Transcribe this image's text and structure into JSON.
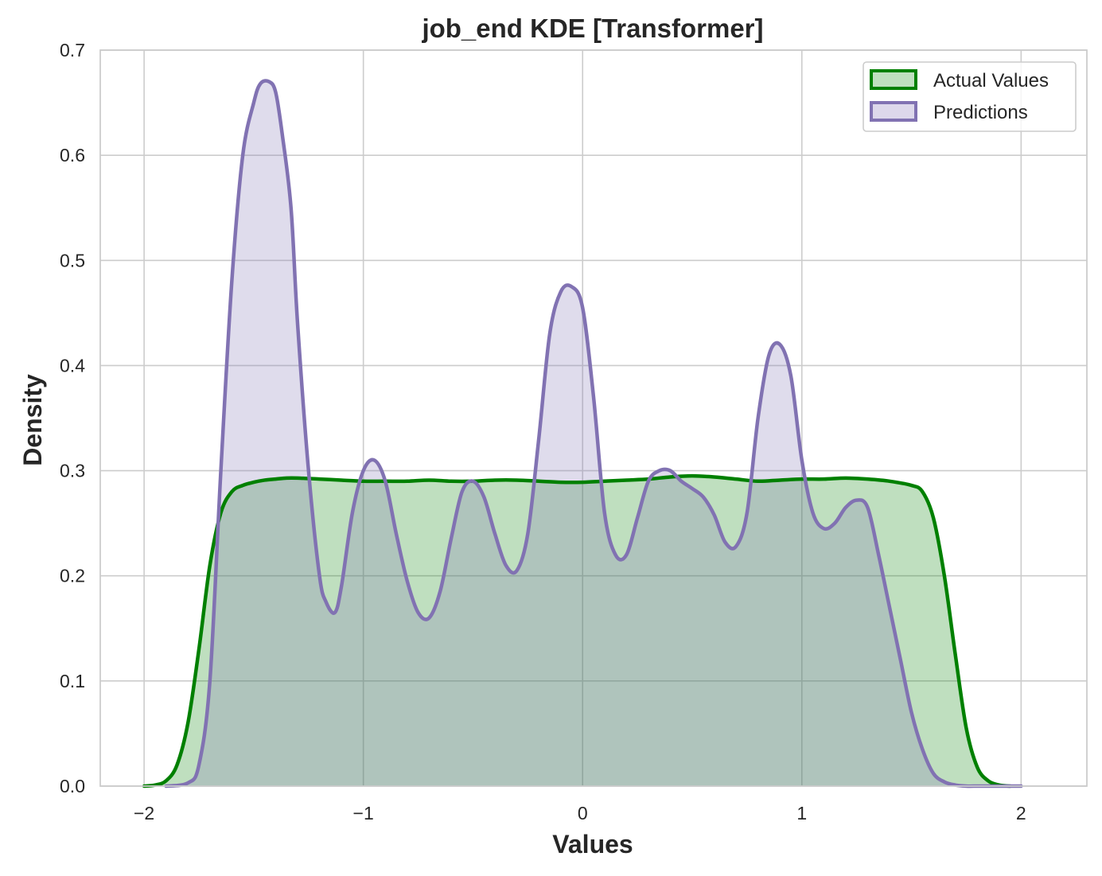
{
  "chart_data": {
    "type": "area",
    "title": "job_end KDE [Transformer]",
    "xlabel": "Values",
    "ylabel": "Density",
    "xlim": [
      -2.2,
      2.3
    ],
    "ylim": [
      0.0,
      0.7
    ],
    "xticks": [
      {
        "value": -2,
        "label": "−2"
      },
      {
        "value": -1,
        "label": "−1"
      },
      {
        "value": 0,
        "label": "0"
      },
      {
        "value": 1,
        "label": "1"
      },
      {
        "value": 2,
        "label": "2"
      }
    ],
    "yticks": [
      {
        "value": 0.0,
        "label": "0.0"
      },
      {
        "value": 0.1,
        "label": "0.1"
      },
      {
        "value": 0.2,
        "label": "0.2"
      },
      {
        "value": 0.3,
        "label": "0.3"
      },
      {
        "value": 0.4,
        "label": "0.4"
      },
      {
        "value": 0.5,
        "label": "0.5"
      },
      {
        "value": 0.6,
        "label": "0.6"
      },
      {
        "value": 0.7,
        "label": "0.7"
      }
    ],
    "grid": true,
    "legend_position": "top-right",
    "series": [
      {
        "name": "Actual Values",
        "color": "#008000",
        "fill": "#bfe0bf",
        "x": [
          -2.0,
          -1.95,
          -1.9,
          -1.85,
          -1.8,
          -1.75,
          -1.7,
          -1.65,
          -1.6,
          -1.55,
          -1.5,
          -1.45,
          -1.4,
          -1.35,
          -1.3,
          -1.2,
          -1.1,
          -1.0,
          -0.9,
          -0.8,
          -0.7,
          -0.6,
          -0.5,
          -0.4,
          -0.3,
          -0.2,
          -0.1,
          0.0,
          0.1,
          0.2,
          0.3,
          0.4,
          0.5,
          0.6,
          0.7,
          0.8,
          0.9,
          1.0,
          1.1,
          1.2,
          1.3,
          1.4,
          1.5,
          1.55,
          1.6,
          1.65,
          1.7,
          1.75,
          1.8,
          1.85,
          1.9,
          1.95
        ],
        "y": [
          0.0,
          0.001,
          0.005,
          0.02,
          0.06,
          0.13,
          0.21,
          0.26,
          0.28,
          0.286,
          0.289,
          0.291,
          0.292,
          0.293,
          0.293,
          0.292,
          0.291,
          0.29,
          0.29,
          0.29,
          0.291,
          0.29,
          0.29,
          0.291,
          0.291,
          0.29,
          0.289,
          0.289,
          0.29,
          0.291,
          0.292,
          0.294,
          0.295,
          0.294,
          0.292,
          0.29,
          0.291,
          0.292,
          0.292,
          0.293,
          0.292,
          0.29,
          0.286,
          0.28,
          0.255,
          0.2,
          0.125,
          0.055,
          0.018,
          0.005,
          0.001,
          0.0
        ]
      },
      {
        "name": "Predictions",
        "color": "#8172b2",
        "fill": "#ddd8eb",
        "x": [
          -1.9,
          -1.8,
          -1.75,
          -1.7,
          -1.65,
          -1.6,
          -1.55,
          -1.5,
          -1.47,
          -1.43,
          -1.4,
          -1.37,
          -1.33,
          -1.3,
          -1.25,
          -1.2,
          -1.17,
          -1.13,
          -1.1,
          -1.05,
          -1.0,
          -0.95,
          -0.9,
          -0.85,
          -0.8,
          -0.75,
          -0.7,
          -0.65,
          -0.6,
          -0.55,
          -0.5,
          -0.45,
          -0.4,
          -0.35,
          -0.3,
          -0.25,
          -0.2,
          -0.15,
          -0.1,
          -0.05,
          0.0,
          0.05,
          0.1,
          0.15,
          0.2,
          0.25,
          0.3,
          0.35,
          0.4,
          0.45,
          0.5,
          0.55,
          0.6,
          0.65,
          0.7,
          0.75,
          0.8,
          0.85,
          0.9,
          0.95,
          1.0,
          1.05,
          1.1,
          1.15,
          1.2,
          1.25,
          1.3,
          1.35,
          1.4,
          1.45,
          1.5,
          1.55,
          1.6,
          1.65,
          1.7,
          1.75,
          1.8,
          1.85,
          1.9,
          1.95,
          2.0
        ],
        "y": [
          0.0,
          0.003,
          0.02,
          0.1,
          0.3,
          0.48,
          0.6,
          0.65,
          0.668,
          0.67,
          0.66,
          0.62,
          0.55,
          0.44,
          0.3,
          0.2,
          0.175,
          0.165,
          0.19,
          0.26,
          0.3,
          0.31,
          0.29,
          0.24,
          0.195,
          0.165,
          0.16,
          0.185,
          0.235,
          0.28,
          0.29,
          0.275,
          0.24,
          0.21,
          0.205,
          0.24,
          0.33,
          0.43,
          0.47,
          0.475,
          0.455,
          0.37,
          0.26,
          0.22,
          0.22,
          0.255,
          0.29,
          0.3,
          0.3,
          0.29,
          0.283,
          0.275,
          0.258,
          0.232,
          0.228,
          0.26,
          0.35,
          0.41,
          0.42,
          0.39,
          0.31,
          0.26,
          0.245,
          0.25,
          0.265,
          0.272,
          0.265,
          0.22,
          0.17,
          0.12,
          0.07,
          0.035,
          0.012,
          0.004,
          0.001,
          0.0,
          0.0,
          0.0,
          0.0,
          0.0,
          0.0
        ]
      }
    ]
  }
}
